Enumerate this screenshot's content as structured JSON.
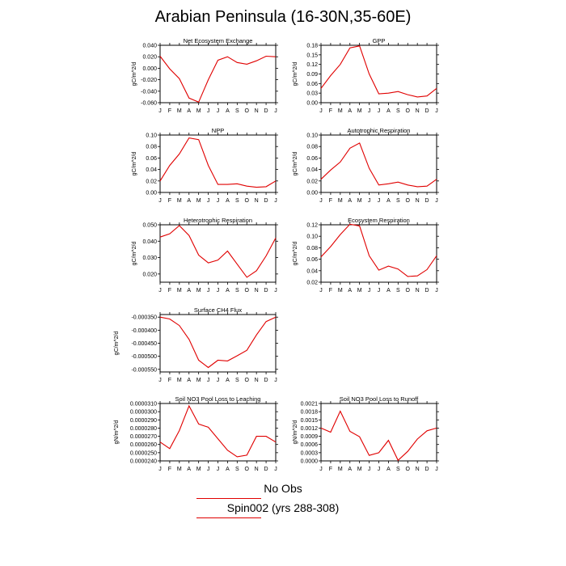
{
  "figure": {
    "title": "Arabian Peninsula (16-30N,35-60E)",
    "legend": [
      {
        "label": "No Obs",
        "color": "#ff0000"
      },
      {
        "label": "Spin002 (yrs 288-308)",
        "color": "#ff0000"
      }
    ],
    "line_color": "#e00000"
  },
  "chart_data": [
    {
      "type": "line",
      "title": "Net Ecosystem Exchange",
      "ylabel": "gC/m^2/d",
      "categories": [
        "J",
        "F",
        "M",
        "A",
        "M",
        "J",
        "J",
        "A",
        "S",
        "O",
        "N",
        "D",
        "J"
      ],
      "values": [
        0.021,
        -0.001,
        -0.018,
        -0.052,
        -0.059,
        -0.02,
        0.014,
        0.02,
        0.01,
        0.007,
        0.013,
        0.021,
        0.02
      ],
      "ylim": [
        -0.06,
        0.04
      ],
      "yticks": [
        -0.06,
        -0.04,
        -0.02,
        0.0,
        0.02,
        0.04
      ],
      "yticklabels": [
        "-0.060",
        "-0.040",
        "-0.020",
        "0.000",
        "0.020",
        "0.040"
      ]
    },
    {
      "type": "line",
      "title": "GPP",
      "ylabel": "gC/m^2/d",
      "categories": [
        "J",
        "F",
        "M",
        "A",
        "M",
        "J",
        "J",
        "A",
        "S",
        "O",
        "N",
        "D",
        "J"
      ],
      "values": [
        0.045,
        0.085,
        0.12,
        0.172,
        0.178,
        0.09,
        0.028,
        0.03,
        0.035,
        0.025,
        0.018,
        0.021,
        0.045
      ],
      "ylim": [
        0.0,
        0.18
      ],
      "yticks": [
        0.0,
        0.03,
        0.06,
        0.09,
        0.12,
        0.15,
        0.18
      ],
      "yticklabels": [
        "0.00",
        "0.03",
        "0.06",
        "0.09",
        "0.12",
        "0.15",
        "0.18"
      ]
    },
    {
      "type": "line",
      "title": "NPP",
      "ylabel": "gC/m^2/d",
      "categories": [
        "J",
        "F",
        "M",
        "A",
        "M",
        "J",
        "J",
        "A",
        "S",
        "O",
        "N",
        "D",
        "J"
      ],
      "values": [
        0.02,
        0.047,
        0.067,
        0.095,
        0.092,
        0.047,
        0.014,
        0.014,
        0.015,
        0.011,
        0.009,
        0.01,
        0.02
      ],
      "ylim": [
        0.0,
        0.1
      ],
      "yticks": [
        0.0,
        0.02,
        0.04,
        0.06,
        0.08,
        0.1
      ],
      "yticklabels": [
        "0.00",
        "0.02",
        "0.04",
        "0.06",
        "0.08",
        "0.10"
      ]
    },
    {
      "type": "line",
      "title": "Autotrophic Respiration",
      "ylabel": "gC/m^2/d",
      "categories": [
        "J",
        "F",
        "M",
        "A",
        "M",
        "J",
        "J",
        "A",
        "S",
        "O",
        "N",
        "D",
        "J"
      ],
      "values": [
        0.023,
        0.039,
        0.053,
        0.077,
        0.086,
        0.042,
        0.013,
        0.015,
        0.018,
        0.013,
        0.01,
        0.011,
        0.023
      ],
      "ylim": [
        0.0,
        0.1
      ],
      "yticks": [
        0.0,
        0.02,
        0.04,
        0.06,
        0.08,
        0.1
      ],
      "yticklabels": [
        "0.00",
        "0.02",
        "0.04",
        "0.06",
        "0.08",
        "0.10"
      ]
    },
    {
      "type": "line",
      "title": "Heterotrophic Respiration",
      "ylabel": "gC/m^2/d",
      "categories": [
        "J",
        "F",
        "M",
        "A",
        "M",
        "J",
        "J",
        "A",
        "S",
        "O",
        "N",
        "D",
        "J"
      ],
      "values": [
        0.0425,
        0.0445,
        0.0495,
        0.0435,
        0.0315,
        0.0268,
        0.0285,
        0.034,
        0.026,
        0.018,
        0.022,
        0.031,
        0.042
      ],
      "ylim": [
        0.015,
        0.05
      ],
      "yticks": [
        0.02,
        0.03,
        0.04,
        0.05
      ],
      "yticklabels": [
        "0.020",
        "0.030",
        "0.040",
        "0.050"
      ]
    },
    {
      "type": "line",
      "title": "Ecosystem Respiration",
      "ylabel": "gC/m^2/d",
      "categories": [
        "J",
        "F",
        "M",
        "A",
        "M",
        "J",
        "J",
        "A",
        "S",
        "O",
        "N",
        "D",
        "J"
      ],
      "values": [
        0.064,
        0.082,
        0.103,
        0.121,
        0.118,
        0.066,
        0.041,
        0.048,
        0.043,
        0.03,
        0.031,
        0.042,
        0.066
      ],
      "ylim": [
        0.02,
        0.12
      ],
      "yticks": [
        0.02,
        0.04,
        0.06,
        0.08,
        0.1,
        0.12
      ],
      "yticklabels": [
        "0.02",
        "0.04",
        "0.06",
        "0.08",
        "0.10",
        "0.12"
      ]
    },
    {
      "type": "line",
      "title": "Surface CH4 Flux",
      "ylabel": "gC/m^2/d",
      "categories": [
        "J",
        "F",
        "M",
        "A",
        "M",
        "J",
        "J",
        "A",
        "S",
        "O",
        "N",
        "D",
        "J"
      ],
      "values": [
        -0.00035,
        -0.000357,
        -0.000382,
        -0.000435,
        -0.000515,
        -0.000543,
        -0.000515,
        -0.000518,
        -0.000498,
        -0.000477,
        -0.000418,
        -0.000367,
        -0.00035
      ],
      "ylim": [
        -0.00056,
        -0.00034
      ],
      "yticks": [
        -0.00035,
        -0.0004,
        -0.00045,
        -0.0005,
        -0.00055
      ],
      "yticklabels": [
        "-0.000350",
        "-0.000400",
        "-0.000450",
        "-0.000500",
        "-0.000550"
      ]
    },
    {
      "type": "line",
      "title": "Soil NO3 Pool Loss to Leaching",
      "ylabel": "gN/m^2/d",
      "categories": [
        "J",
        "F",
        "M",
        "A",
        "M",
        "J",
        "J",
        "A",
        "S",
        "O",
        "N",
        "D",
        "J"
      ],
      "values": [
        2.63e-05,
        2.55e-05,
        2.77e-05,
        3.07e-05,
        2.85e-05,
        2.81e-05,
        2.67e-05,
        2.53e-05,
        2.45e-05,
        2.47e-05,
        2.7e-05,
        2.7e-05,
        2.63e-05
      ],
      "ylim": [
        2.4e-05,
        3.1e-05
      ],
      "yticks": [
        2.4e-05,
        2.5e-05,
        2.6e-05,
        2.7e-05,
        2.8e-05,
        2.9e-05,
        3e-05,
        3.1e-05
      ],
      "yticklabels": [
        "0.0000240",
        "0.0000250",
        "0.0000260",
        "0.0000270",
        "0.0000280",
        "0.0000290",
        "0.0000300",
        "0.0000310"
      ]
    },
    {
      "type": "line",
      "title": "Soil NO3 Pool Loss to Runoff",
      "ylabel": "gN/m^2/d",
      "categories": [
        "J",
        "F",
        "M",
        "A",
        "M",
        "J",
        "J",
        "A",
        "S",
        "O",
        "N",
        "D",
        "J"
      ],
      "values": [
        0.0012,
        0.00105,
        0.00182,
        0.00108,
        0.00088,
        0.0002,
        0.0003,
        0.00075,
        2e-05,
        0.00035,
        0.0008,
        0.0011,
        0.0012
      ],
      "ylim": [
        0.0,
        0.0021
      ],
      "yticks": [
        0.0,
        0.0003,
        0.0006,
        0.0009,
        0.0012,
        0.0015,
        0.0018,
        0.0021
      ],
      "yticklabels": [
        "0.0000",
        "0.0003",
        "0.0006",
        "0.0009",
        "0.0012",
        "0.0015",
        "0.0018",
        "0.0021"
      ]
    }
  ]
}
